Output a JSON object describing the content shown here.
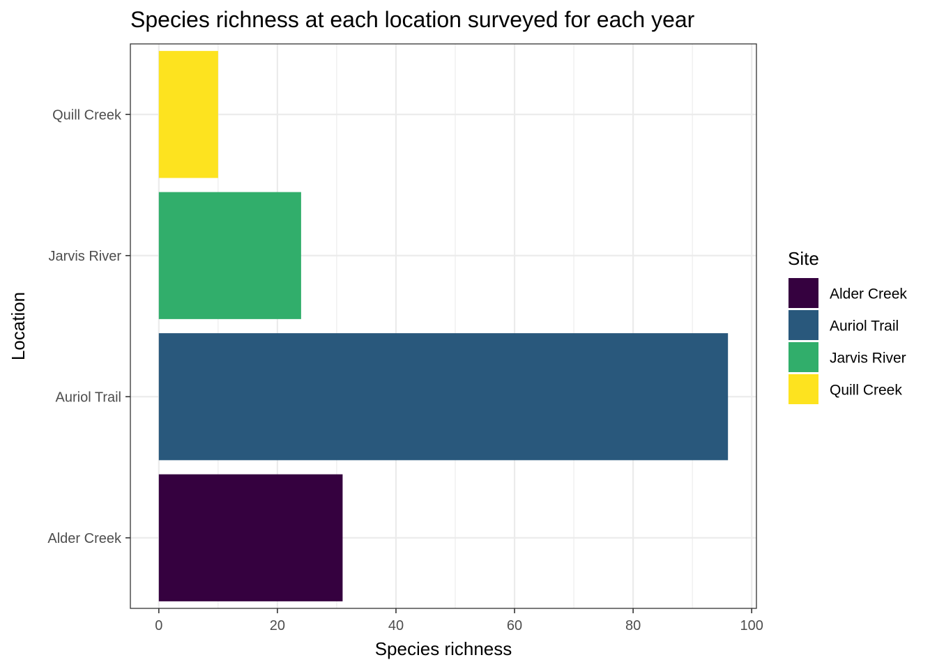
{
  "chart_data": {
    "type": "bar",
    "orientation": "horizontal",
    "title": "Species richness at each location surveyed for each year",
    "xlabel": "Species richness",
    "ylabel": "Location",
    "categories": [
      "Alder Creek",
      "Auriol Trail",
      "Jarvis River",
      "Quill Creek"
    ],
    "values": [
      31,
      96,
      24,
      10
    ],
    "colors": [
      "#35013f",
      "#29587c",
      "#31ae6b",
      "#fde31f"
    ],
    "xlim": [
      -4.8,
      100.8
    ],
    "xticks": [
      0,
      20,
      40,
      60,
      80,
      100
    ],
    "grid": true,
    "legend": {
      "title": "Site",
      "placement": "right",
      "entries": [
        "Alder Creek",
        "Auriol Trail",
        "Jarvis River",
        "Quill Creek"
      ]
    }
  }
}
